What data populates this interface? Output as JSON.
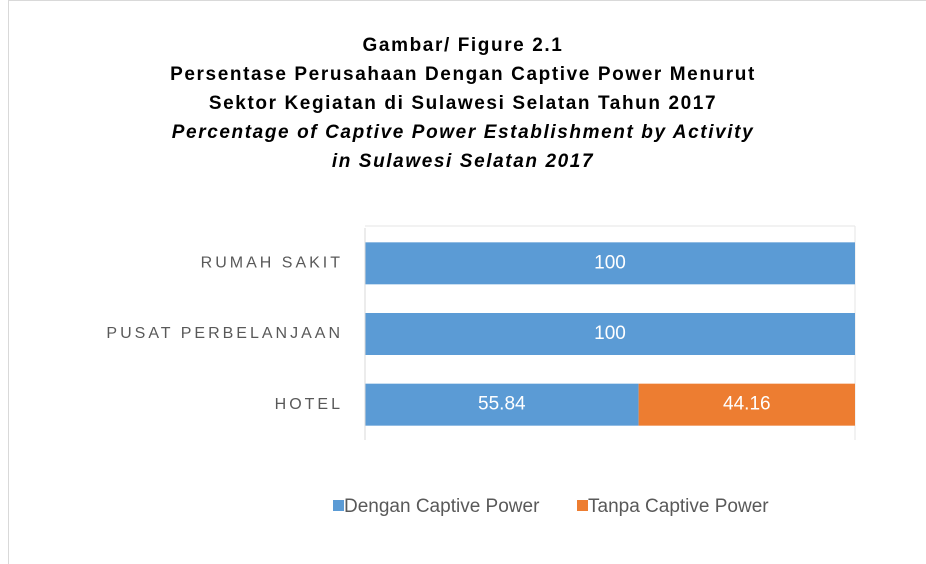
{
  "chart_data": {
    "type": "stacked_bar_horizontal",
    "title": [
      "Gambar/ Figure 2.1",
      "Persentase Perusahaan Dengan Captive Power Menurut",
      "Sektor Kegiatan di Sulawesi Selatan Tahun 2017"
    ],
    "subtitle": [
      "Percentage of Captive Power Establishment by Activity",
      "in Sulawesi Selatan 2017"
    ],
    "categories": [
      "RUMAH SAKIT",
      "PUSAT PERBELANJAAN",
      "HOTEL"
    ],
    "series": [
      {
        "name": "Dengan Captive Power",
        "color": "#5b9bd5",
        "values": [
          100,
          100,
          55.84
        ]
      },
      {
        "name": "Tanpa Captive Power",
        "color": "#ed7d31",
        "values": [
          0,
          0,
          44.16
        ]
      }
    ],
    "xlim": [
      0,
      100
    ],
    "legend": "bottom"
  }
}
